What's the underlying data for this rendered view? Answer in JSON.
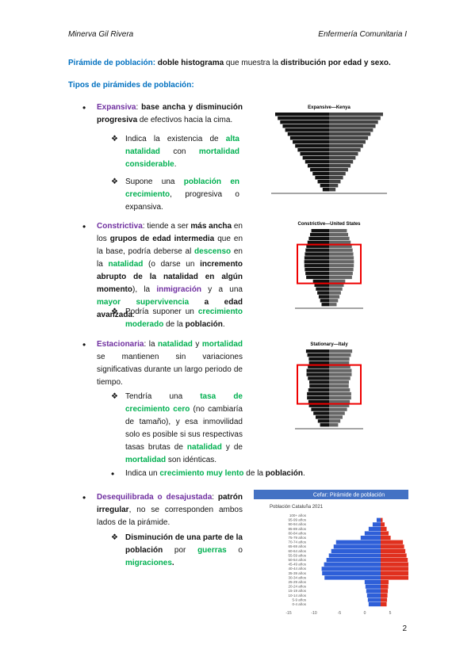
{
  "header": {
    "author": "Minerva Gil Rivera",
    "subject": "Enfermería Comunitaria I"
  },
  "intro": [
    {
      "text": "Pirámide de población:",
      "style": "blue-bold"
    },
    {
      "text": " doble histograma",
      "style": "bold"
    },
    {
      "text": " que muestra la ",
      "style": "plain"
    },
    {
      "text": "distribución por edad y sexo.",
      "style": "bold"
    }
  ],
  "heading": "Tipos de pirámides de población:",
  "sections": [
    {
      "bullet": [
        {
          "text": "Expansiva",
          "style": "purple-bold"
        },
        {
          "text": ": ",
          "style": "plain"
        },
        {
          "text": "base ancha y disminución progresiva",
          "style": "bold"
        },
        {
          "text": " de efectivos hacia la cima.",
          "style": "plain"
        }
      ],
      "subs": [
        [
          {
            "text": "Indica la existencia de ",
            "style": "plain"
          },
          {
            "text": "alta natalidad",
            "style": "green-bold"
          },
          {
            "text": " con ",
            "style": "plain"
          },
          {
            "text": "mortalidad considerable",
            "style": "green-bold"
          },
          {
            "text": ".",
            "style": "plain"
          }
        ],
        [
          {
            "text": "Supone una ",
            "style": "plain"
          },
          {
            "text": "población en crecimiento",
            "style": "green-bold"
          },
          {
            "text": ", progresiva o expansiva.",
            "style": "plain"
          }
        ]
      ],
      "figure": "Expansive—Kenya"
    },
    {
      "bullet": [
        {
          "text": "Constrictiva",
          "style": "purple-bold"
        },
        {
          "text": ": tiende a ser ",
          "style": "plain"
        },
        {
          "text": "más ancha",
          "style": "bold"
        },
        {
          "text": " en los ",
          "style": "plain"
        },
        {
          "text": "grupos de edad intermedia",
          "style": "bold"
        },
        {
          "text": " que en la base, podría deberse al ",
          "style": "plain"
        },
        {
          "text": "descenso",
          "style": "green-bold"
        },
        {
          "text": " en la ",
          "style": "plain"
        },
        {
          "text": "natalidad",
          "style": "green-bold"
        },
        {
          "text": " (o darse un ",
          "style": "plain"
        },
        {
          "text": "incremento abrupto de la natalidad en algún momento",
          "style": "bold"
        },
        {
          "text": "), la ",
          "style": "plain"
        },
        {
          "text": "inmigración",
          "style": "purple-bold"
        },
        {
          "text": " y a una ",
          "style": "plain"
        },
        {
          "text": "mayor supervivencia",
          "style": "green-bold"
        },
        {
          "text": " a edad avanzada",
          "style": "bold"
        },
        {
          "text": ".",
          "style": "plain"
        }
      ],
      "subs": [
        [
          {
            "text": "Podría suponer un ",
            "style": "plain"
          },
          {
            "text": "crecimiento moderado",
            "style": "green-bold"
          },
          {
            "text": " de la ",
            "style": "plain"
          },
          {
            "text": "población",
            "style": "bold"
          },
          {
            "text": ".",
            "style": "plain"
          }
        ]
      ],
      "figure": "Constrictive—United States"
    },
    {
      "bullet": [
        {
          "text": "Estacionaria",
          "style": "purple-bold"
        },
        {
          "text": ": la ",
          "style": "plain"
        },
        {
          "text": "natalidad",
          "style": "green-bold"
        },
        {
          "text": " y ",
          "style": "plain"
        },
        {
          "text": "mortalidad",
          "style": "green-bold"
        },
        {
          "text": " se mantienen sin variaciones significativas durante un largo periodo de tiempo.",
          "style": "plain"
        }
      ],
      "subs": [
        [
          {
            "text": "Tendría una ",
            "style": "plain"
          },
          {
            "text": "tasa de crecimiento cero",
            "style": "green-bold"
          },
          {
            "text": " (no cambiaría de tamaño), y esa inmovilidad solo es posible si sus respectivas tasas brutas de ",
            "style": "plain"
          },
          {
            "text": "natalidad",
            "style": "green-bold"
          },
          {
            "text": " y de ",
            "style": "plain"
          },
          {
            "text": "mortalidad",
            "style": "green-bold"
          },
          {
            "text": " son idénticas.",
            "style": "plain"
          }
        ]
      ],
      "note": [
        {
          "text": "Indica un ",
          "style": "plain"
        },
        {
          "text": "crecimiento muy lento",
          "style": "green-bold"
        },
        {
          "text": " de la ",
          "style": "plain"
        },
        {
          "text": "población",
          "style": "bold"
        },
        {
          "text": ".",
          "style": "plain"
        }
      ],
      "figure": "Stationary—Italy"
    },
    {
      "bullet": [
        {
          "text": "Desequilibrada o desajustada",
          "style": "purple-bold"
        },
        {
          "text": ": ",
          "style": "plain"
        },
        {
          "text": "patrón irregular",
          "style": "bold"
        },
        {
          "text": ", no se corresponden ambos lados de la pirámide.",
          "style": "plain"
        }
      ],
      "subs": [
        [
          {
            "text": "Disminución de una parte de la población",
            "style": "bold"
          },
          {
            "text": " por ",
            "style": "plain"
          },
          {
            "text": "guerras",
            "style": "green-bold"
          },
          {
            "text": " o ",
            "style": "plain"
          },
          {
            "text": "migraciones",
            "style": "green-bold"
          },
          {
            "text": ".",
            "style": "bold"
          }
        ]
      ]
    }
  ],
  "chart": {
    "title": "Cefar: Pirámide de población",
    "subtitle": "Población Cataluña 2021",
    "ages": [
      "100+ años",
      "95-99 años",
      "90-94 años",
      "85-89 años",
      "80-84 años",
      "75-79 años",
      "70-74 años",
      "65-69 años",
      "60-64 años",
      "55-59 años",
      "50-54 años",
      "45-49 años",
      "40-44 años",
      "35-39 años",
      "30-34 años",
      "25-29 años",
      "20-24 años",
      "15-19 años",
      "10-14 años",
      "5-9 años",
      "0-4 años"
    ],
    "ticks": [
      "-15",
      "-10",
      "-5",
      "0",
      "5"
    ]
  },
  "page_number": "2"
}
